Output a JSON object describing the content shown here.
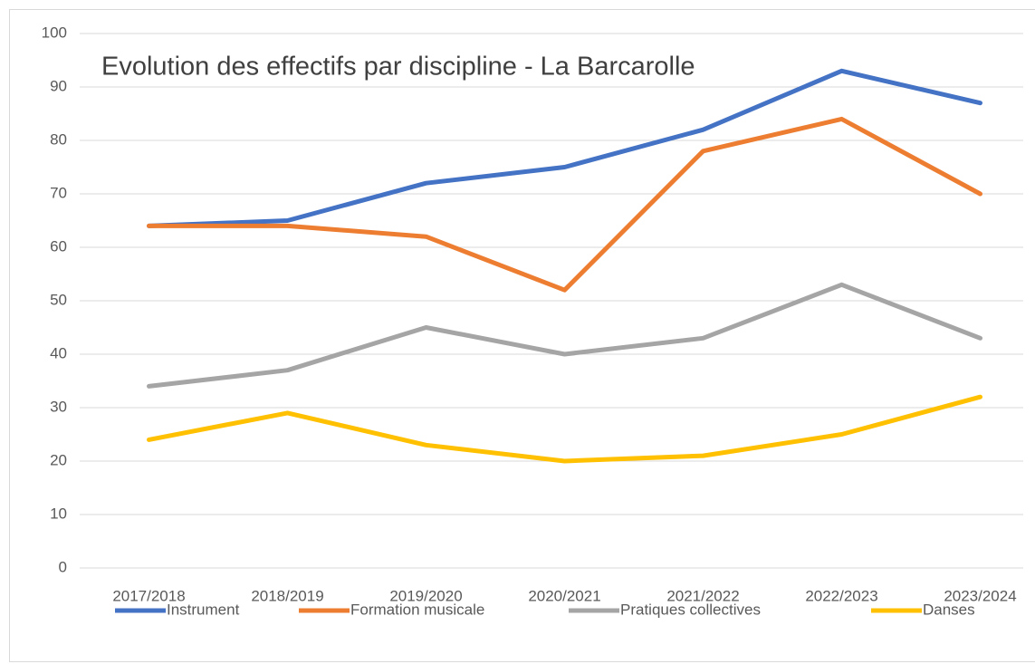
{
  "chart_data": {
    "type": "line",
    "title": "Evolution des effectifs par discipline - La Barcarolle",
    "categories": [
      "2017/2018",
      "2018/2019",
      "2019/2020",
      "2020/2021",
      "2021/2022",
      "2022/2023",
      "2023/2024"
    ],
    "series": [
      {
        "name": "Instrument",
        "color": "#4472c4",
        "values": [
          64,
          65,
          72,
          75,
          82,
          93,
          87
        ]
      },
      {
        "name": "Formation musicale",
        "color": "#ed7d31",
        "values": [
          64,
          64,
          62,
          52,
          78,
          84,
          70
        ]
      },
      {
        "name": "Pratiques collectives",
        "color": "#a5a5a5",
        "values": [
          34,
          37,
          45,
          40,
          43,
          53,
          43
        ]
      },
      {
        "name": "Danses",
        "color": "#ffc000",
        "values": [
          24,
          29,
          23,
          20,
          21,
          25,
          32
        ]
      }
    ],
    "ylim": [
      0,
      100
    ],
    "yticks": [
      0,
      10,
      20,
      30,
      40,
      50,
      60,
      70,
      80,
      90,
      100
    ],
    "grid": true,
    "legend": "bottom"
  }
}
